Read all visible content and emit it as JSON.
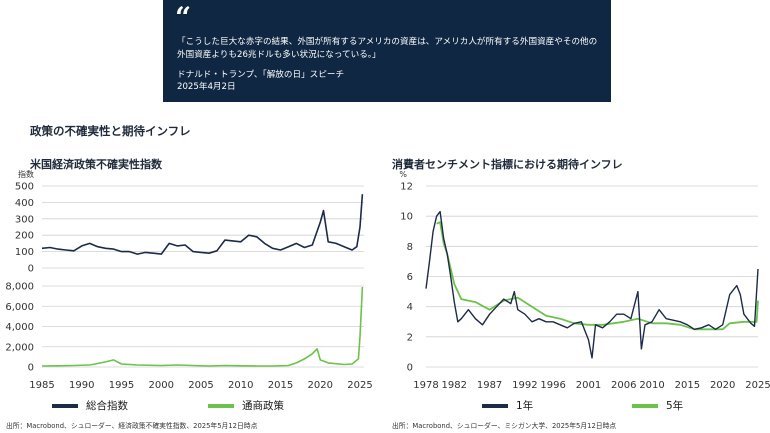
{
  "quote": {
    "mark": "“",
    "text": "「こうした巨大な赤字の結果、外国が所有するアメリカの資産は、アメリカ人が所有する外国資産やその他の外国資産よりも26兆ドルも多い状況になっている。」",
    "author": "ドナルド・トランプ、「解放の日」スピーチ",
    "date": "2025年4月2日"
  },
  "section_title": "政策の不確実性と期待インフレ",
  "colors": {
    "navy": "#1c2b4a",
    "green": "#6cc24a",
    "quote_bg": "#0f2743"
  },
  "chart_data": [
    {
      "type": "line",
      "title": "米国経済政策不確実性指数",
      "ylabel": "指数",
      "xlim": [
        1985,
        2025.5
      ],
      "x_ticks": [
        1985,
        1990,
        1995,
        2000,
        2005,
        2010,
        2015,
        2020,
        2025
      ],
      "top_panel": {
        "ylim": [
          0,
          500
        ],
        "y_ticks": [
          0,
          100,
          200,
          300,
          400,
          500
        ]
      },
      "bottom_panel": {
        "ylim": [
          0,
          8000
        ],
        "y_ticks": [
          0,
          2000,
          4000,
          6000,
          8000
        ],
        "y_tick_labels": [
          "0",
          "2,000",
          "4,000",
          "6,000",
          "8,000"
        ]
      },
      "series": [
        {
          "name": "総合指数",
          "x": [
            1985,
            1986,
            1987,
            1988,
            1989,
            1990,
            1991,
            1992,
            1993,
            1994,
            1995,
            1996,
            1997,
            1998,
            1999,
            2000,
            2001,
            2002,
            2003,
            2004,
            2005,
            2006,
            2007,
            2008,
            2009,
            2010,
            2011,
            2012,
            2013,
            2014,
            2015,
            2016,
            2017,
            2018,
            2019,
            2020,
            2020.4,
            2021,
            2022,
            2023,
            2024,
            2024.6,
            2025,
            2025.3
          ],
          "values": [
            120,
            125,
            115,
            110,
            105,
            135,
            150,
            130,
            120,
            115,
            100,
            100,
            85,
            95,
            90,
            85,
            150,
            135,
            140,
            100,
            95,
            90,
            105,
            170,
            165,
            160,
            200,
            190,
            150,
            120,
            110,
            130,
            150,
            125,
            140,
            280,
            350,
            160,
            150,
            130,
            110,
            130,
            250,
            450
          ]
        },
        {
          "name": "通商政策",
          "x": [
            1985,
            1987,
            1989,
            1991,
            1992,
            1993,
            1994,
            1995,
            1997,
            2000,
            2002,
            2004,
            2006,
            2008,
            2010,
            2012,
            2014,
            2016,
            2017,
            2018,
            2019,
            2019.6,
            2020,
            2021,
            2023,
            2024,
            2024.8,
            2025,
            2025.3
          ],
          "values": [
            100,
            120,
            150,
            200,
            350,
            500,
            700,
            300,
            200,
            150,
            200,
            150,
            100,
            150,
            120,
            100,
            100,
            150,
            400,
            800,
            1300,
            1800,
            700,
            400,
            250,
            300,
            800,
            3000,
            7900
          ]
        }
      ]
    },
    {
      "type": "line",
      "title": "消費者センチメント指標における期待インフレ",
      "ylabel": "%",
      "xlim": [
        1978,
        2025
      ],
      "ylim": [
        0,
        12
      ],
      "x_ticks": [
        1978,
        1982,
        1987,
        1992,
        1996,
        2001,
        2006,
        2010,
        2015,
        2020,
        2025
      ],
      "y_ticks": [
        0,
        2,
        4,
        6,
        8,
        10,
        12
      ],
      "series": [
        {
          "name": "1年",
          "x": [
            1978,
            1978.5,
            1979,
            1979.5,
            1980,
            1980.5,
            1981,
            1981.5,
            1982,
            1982.5,
            1983,
            1984,
            1985,
            1986,
            1987,
            1988,
            1989,
            1990,
            1990.5,
            1991,
            1992,
            1993,
            1994,
            1995,
            1996,
            1997,
            1998,
            1999,
            2000,
            2001,
            2001.5,
            2002,
            2003,
            2004,
            2005,
            2006,
            2007,
            2008,
            2008.5,
            2009,
            2010,
            2011,
            2012,
            2013,
            2014,
            2015,
            2016,
            2017,
            2018,
            2019,
            2020,
            2021,
            2022,
            2022.5,
            2023,
            2024,
            2024.5,
            2025
          ],
          "values": [
            5.2,
            7.0,
            9.0,
            10.0,
            10.3,
            8.5,
            7.5,
            6.0,
            4.3,
            3.0,
            3.2,
            3.8,
            3.2,
            2.8,
            3.5,
            4.0,
            4.5,
            4.2,
            5.0,
            3.8,
            3.5,
            3.0,
            3.2,
            3.0,
            3.0,
            2.8,
            2.6,
            2.9,
            3.0,
            1.8,
            0.6,
            2.8,
            2.6,
            3.0,
            3.5,
            3.5,
            3.2,
            5.0,
            1.2,
            2.8,
            3.0,
            3.8,
            3.2,
            3.1,
            3.0,
            2.8,
            2.5,
            2.6,
            2.8,
            2.5,
            2.8,
            4.8,
            5.4,
            4.8,
            3.5,
            2.9,
            2.7,
            6.5
          ]
        },
        {
          "name": "5年",
          "x": [
            1979.5,
            1980,
            1980.5,
            1981,
            1982,
            1983,
            1985,
            1987,
            1989,
            1991,
            1993,
            1995,
            1997,
            1999,
            2001,
            2003,
            2006,
            2008,
            2010,
            2012,
            2014,
            2016,
            2018,
            2020,
            2021,
            2023,
            2024,
            2024.8,
            2025
          ],
          "values": [
            9.5,
            9.6,
            8.2,
            7.5,
            5.5,
            4.5,
            4.3,
            3.8,
            4.4,
            4.6,
            4.0,
            3.4,
            3.2,
            2.9,
            2.8,
            2.8,
            3.0,
            3.2,
            2.9,
            2.9,
            2.8,
            2.5,
            2.5,
            2.5,
            2.9,
            3.0,
            3.0,
            3.0,
            4.4
          ]
        }
      ]
    }
  ],
  "left_legend": {
    "total": "総合指数",
    "trade": "通商政策"
  },
  "right_legend": {
    "one_year": "1年",
    "five_year": "5年"
  },
  "left_source": "出所：Macrobond、シュローダー、経済政策不確実性指数、2025年5月12日時点",
  "right_source": "出所：Macrobond、シュローダー、ミシガン大学、2025年5月12日時点"
}
